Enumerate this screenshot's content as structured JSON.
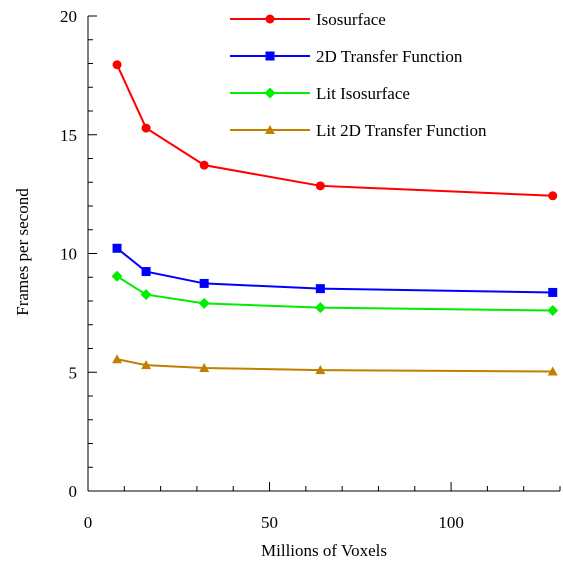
{
  "chart_data": {
    "type": "line",
    "title": "",
    "xlabel": "Millions of Voxels",
    "ylabel": "Frames per second",
    "xlim": [
      0,
      130
    ],
    "ylim": [
      0,
      20
    ],
    "x_ticks": [
      "0",
      "50",
      "100"
    ],
    "y_ticks": [
      "0",
      "5",
      "10",
      "15",
      "20"
    ],
    "grid": false,
    "legend_position": "top-right",
    "x": [
      8,
      16,
      32,
      64,
      128
    ],
    "series": [
      {
        "name": "Isosurface",
        "color": "#ff0000",
        "marker": "circle",
        "values": [
          17.95,
          15.28,
          13.72,
          12.85,
          12.43
        ]
      },
      {
        "name": "2D Transfer Function",
        "color": "#0000ff",
        "marker": "square",
        "values": [
          10.22,
          9.24,
          8.74,
          8.52,
          8.36
        ]
      },
      {
        "name": "Lit Isosurface",
        "color": "#00ee00",
        "marker": "diamond",
        "values": [
          9.04,
          8.27,
          7.9,
          7.72,
          7.6
        ]
      },
      {
        "name": "Lit 2D Transfer Function",
        "color": "#c08000",
        "marker": "triangle",
        "values": [
          5.55,
          5.3,
          5.18,
          5.09,
          5.03
        ]
      }
    ]
  }
}
